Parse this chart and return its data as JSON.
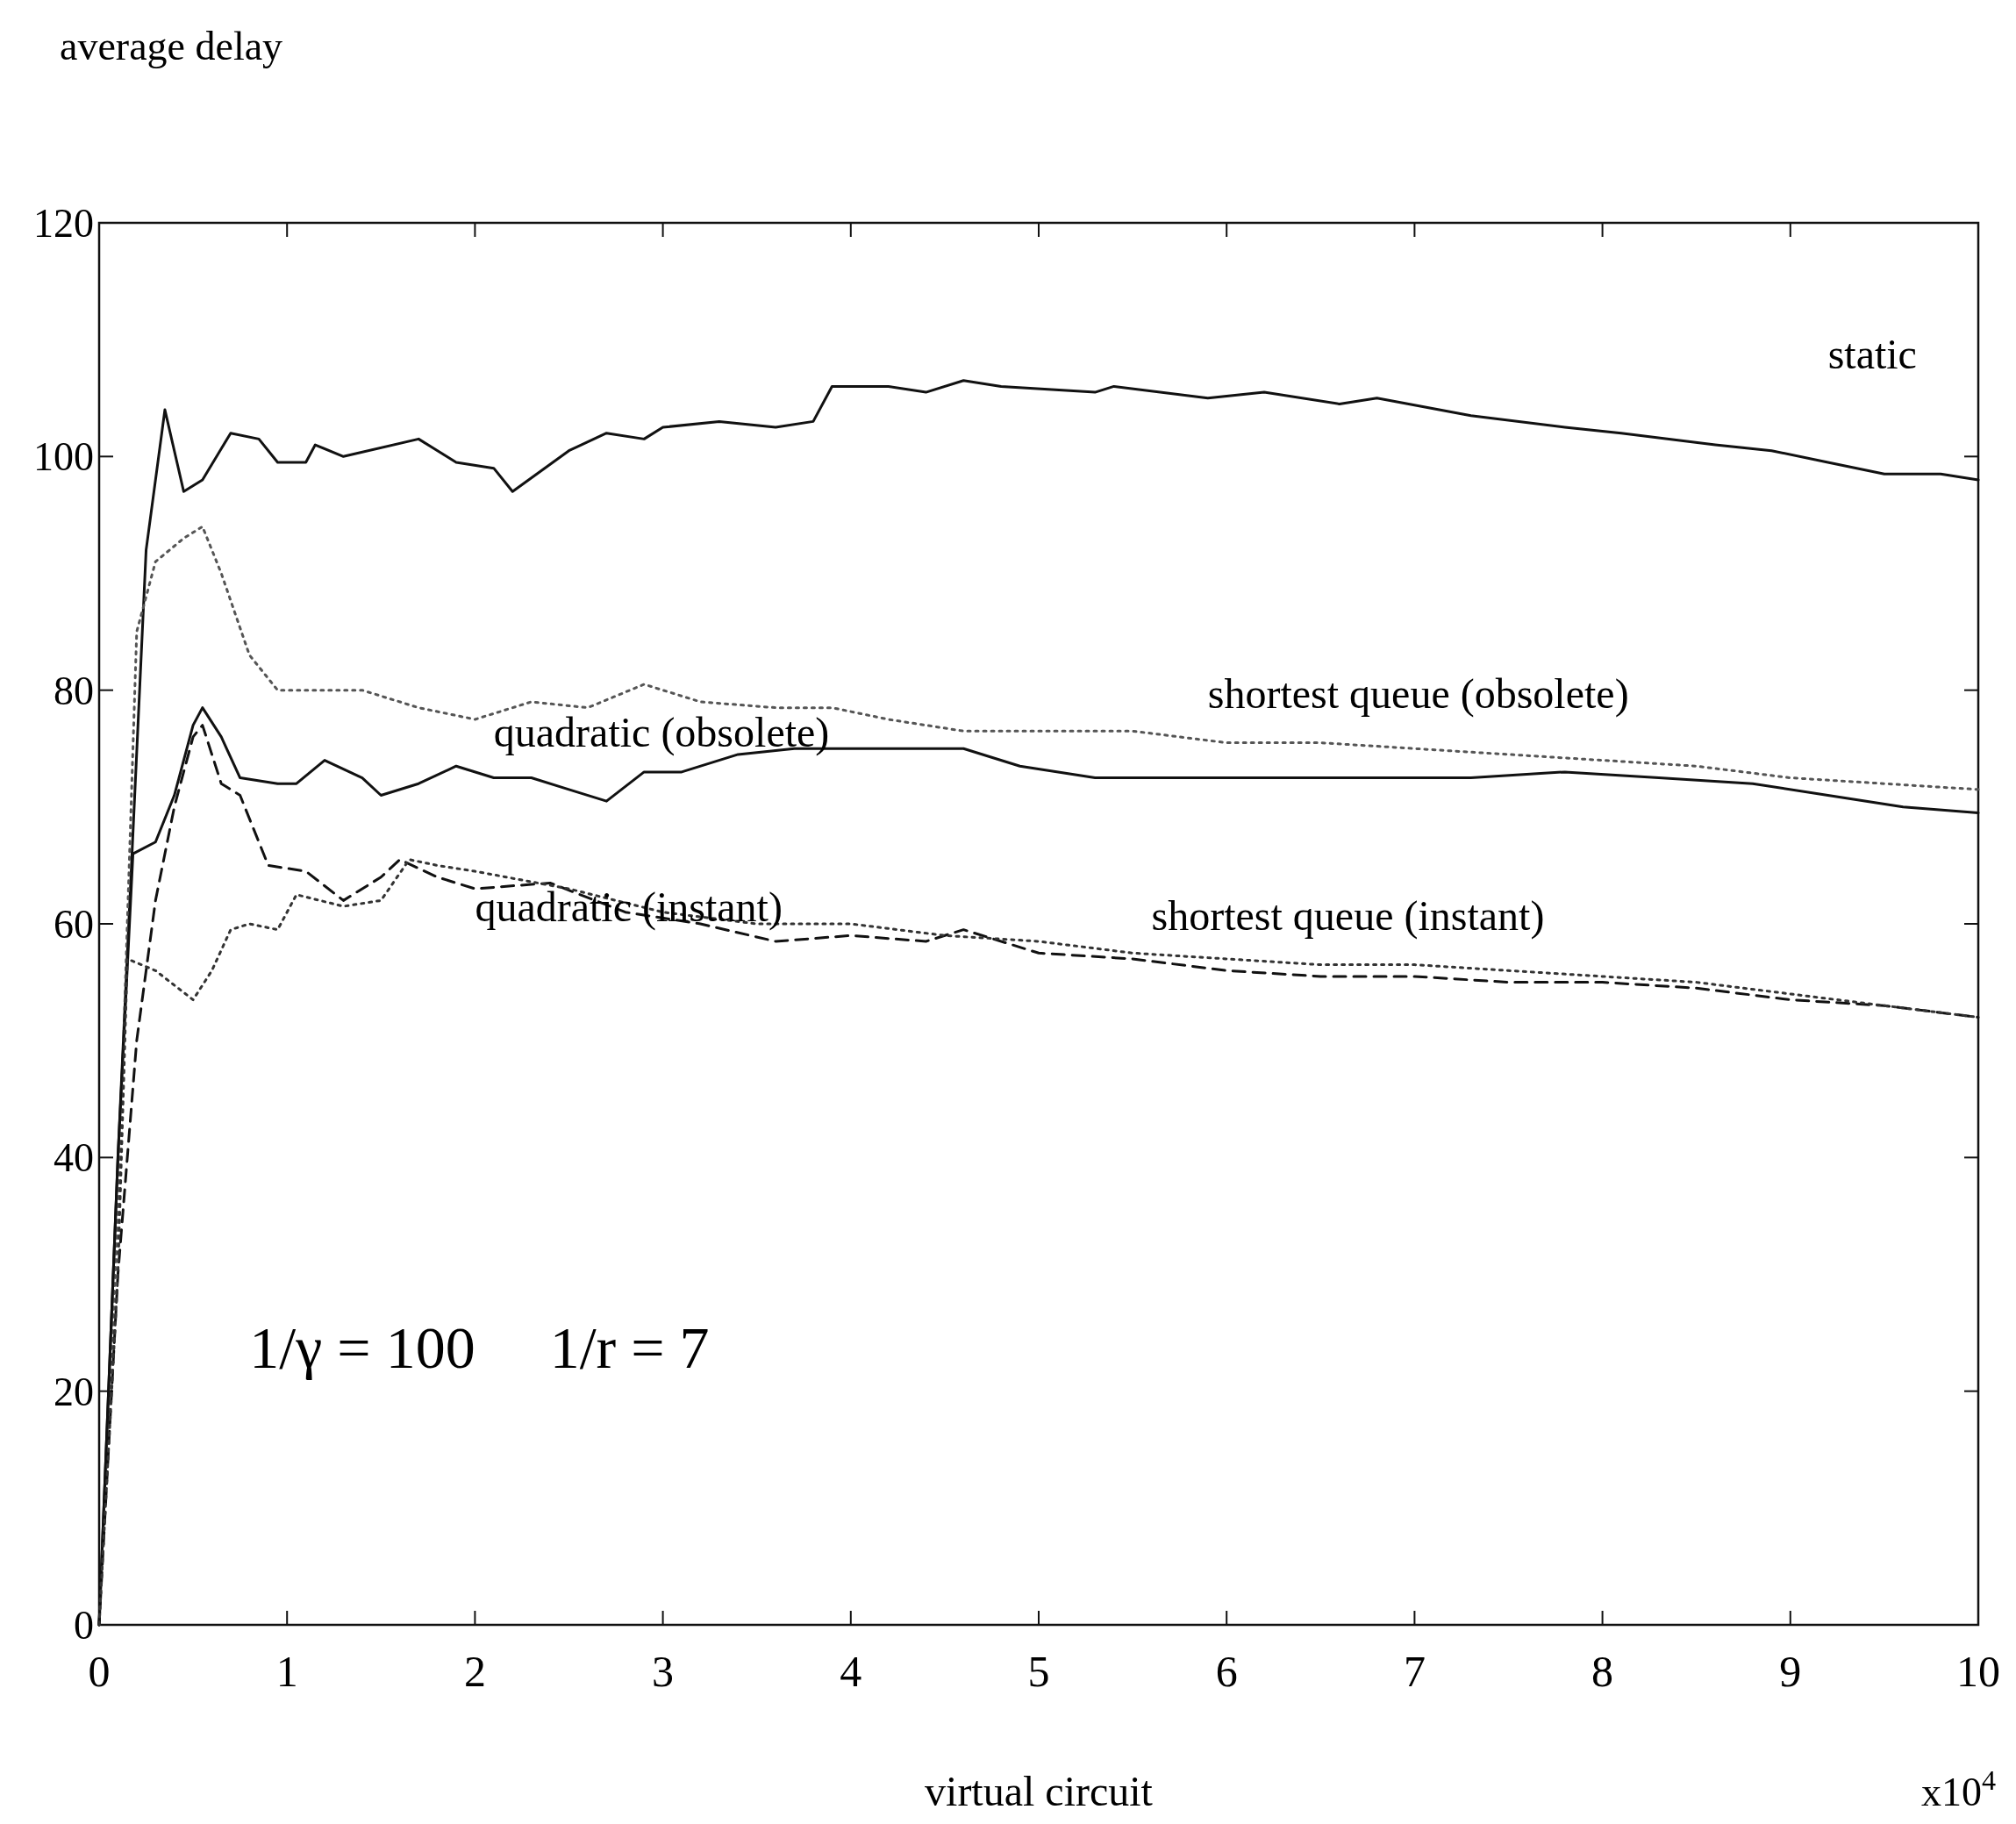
{
  "chart_data": {
    "type": "line",
    "ylabel": "average delay",
    "xlabel": "virtual circuit",
    "xlim": [
      0,
      10
    ],
    "xticks": [
      0,
      1,
      2,
      3,
      4,
      5,
      6,
      7,
      8,
      9,
      10
    ],
    "ylim": [
      0,
      120
    ],
    "yticks": [
      0,
      20,
      40,
      60,
      80,
      100,
      120
    ],
    "grid": false,
    "legend": false,
    "annotations": [
      "x10$^{4}$",
      "1/γ = 100     1/r = 7"
    ],
    "series": [
      {
        "name": "static",
        "color": "#111111",
        "line_style": "solid",
        "x": [
          0,
          0.1,
          0.25,
          0.35,
          0.45,
          0.55,
          0.7,
          0.85,
          0.95,
          1.1,
          1.15,
          1.3,
          1.7,
          1.9,
          2.1,
          2.2,
          2.5,
          2.7,
          2.9,
          3.0,
          3.3,
          3.6,
          3.8,
          3.9,
          4.2,
          4.4,
          4.6,
          4.8,
          5.3,
          5.4,
          5.9,
          6.2,
          6.6,
          6.8,
          7.3,
          7.8,
          8.1,
          8.6,
          8.9,
          9.2,
          9.5,
          9.8,
          10
        ],
        "values": [
          0,
          40,
          92,
          104,
          97,
          98,
          102,
          101.5,
          99.5,
          99.5,
          101,
          100,
          101.5,
          99.5,
          99,
          97,
          100.5,
          102,
          101.5,
          102.5,
          103,
          102.5,
          103,
          106,
          106,
          105.5,
          106.5,
          106,
          105.5,
          106,
          105,
          105.5,
          104.5,
          105,
          103.5,
          102.5,
          102,
          101,
          100.5,
          99.5,
          98.5,
          98.5,
          98
        ]
      },
      {
        "name": "shortest queue (obsolete)",
        "color": "#555555",
        "line_style": "dotted",
        "x": [
          0,
          0.1,
          0.2,
          0.3,
          0.45,
          0.55,
          0.65,
          0.8,
          0.95,
          1.2,
          1.4,
          1.7,
          2.0,
          2.3,
          2.6,
          2.9,
          3.2,
          3.6,
          3.9,
          4.2,
          4.6,
          5.0,
          5.5,
          6.0,
          6.5,
          7.0,
          7.5,
          8.0,
          8.5,
          9.0,
          9.5,
          10
        ],
        "values": [
          0,
          35,
          85,
          91,
          93,
          94,
          90,
          83,
          80,
          80,
          80,
          78.5,
          77.5,
          79,
          78.5,
          80.5,
          79,
          78.5,
          78.5,
          77.5,
          76.5,
          76.5,
          76.5,
          75.5,
          75.5,
          75,
          74.5,
          74,
          73.5,
          72.5,
          72,
          71.5
        ]
      },
      {
        "name": "quadratic (obsolete)",
        "color": "#111111",
        "line_style": "solid",
        "x": [
          0,
          0.1,
          0.18,
          0.3,
          0.4,
          0.5,
          0.55,
          0.65,
          0.75,
          0.95,
          1.05,
          1.2,
          1.4,
          1.5,
          1.7,
          1.9,
          2.1,
          2.3,
          2.5,
          2.7,
          2.9,
          3.1,
          3.4,
          3.7,
          4.0,
          4.4,
          4.6,
          4.9,
          5.3,
          5.8,
          6.3,
          6.8,
          7.3,
          7.8,
          8.3,
          8.8,
          9.2,
          9.6,
          10
        ],
        "values": [
          0,
          40,
          66,
          67,
          71,
          77,
          78.5,
          76,
          72.5,
          72,
          72,
          74,
          72.5,
          71,
          72,
          73.5,
          72.5,
          72.5,
          71.5,
          70.5,
          73,
          73,
          74.5,
          75,
          75,
          75,
          75,
          73.5,
          72.5,
          72.5,
          72.5,
          72.5,
          72.5,
          73,
          72.5,
          72,
          71,
          70,
          69.5
        ]
      },
      {
        "name": "quadratic (instant)",
        "color": "#111111",
        "line_style": "dashed",
        "x": [
          0,
          0.1,
          0.2,
          0.3,
          0.4,
          0.5,
          0.55,
          0.65,
          0.75,
          0.9,
          1.1,
          1.3,
          1.5,
          1.6,
          1.8,
          2.0,
          2.4,
          2.8,
          3.2,
          3.6,
          4.0,
          4.4,
          4.6,
          5.0,
          5.5,
          6.0,
          6.5,
          7.0,
          7.5,
          8.0,
          8.5,
          9.0,
          9.5,
          10
        ],
        "values": [
          0,
          30,
          50,
          62,
          70,
          76,
          77,
          72,
          71,
          65,
          64.5,
          62,
          64,
          65.5,
          64,
          63,
          63.5,
          61,
          60,
          58.5,
          59,
          58.5,
          59.5,
          57.5,
          57,
          56,
          55.5,
          55.5,
          55,
          55,
          54.5,
          53.5,
          53,
          52
        ]
      },
      {
        "name": "shortest queue (instant)",
        "color": "#333333",
        "line_style": "dotted",
        "x": [
          0,
          0.1,
          0.15,
          0.3,
          0.5,
          0.6,
          0.7,
          0.8,
          0.95,
          1.05,
          1.3,
          1.5,
          1.65,
          1.8,
          2.0,
          2.5,
          3.0,
          3.5,
          4.0,
          4.5,
          5.0,
          5.5,
          6.0,
          6.5,
          7.0,
          7.5,
          8.0,
          8.5,
          9.0,
          9.5,
          10
        ],
        "values": [
          0,
          30,
          57,
          56,
          53.5,
          56,
          59.5,
          60,
          59.5,
          62.5,
          61.5,
          62,
          65.5,
          65,
          64.5,
          63,
          61,
          60,
          60,
          59,
          58.5,
          57.5,
          57,
          56.5,
          56.5,
          56,
          55.5,
          55,
          54,
          53,
          52
        ]
      }
    ]
  }
}
